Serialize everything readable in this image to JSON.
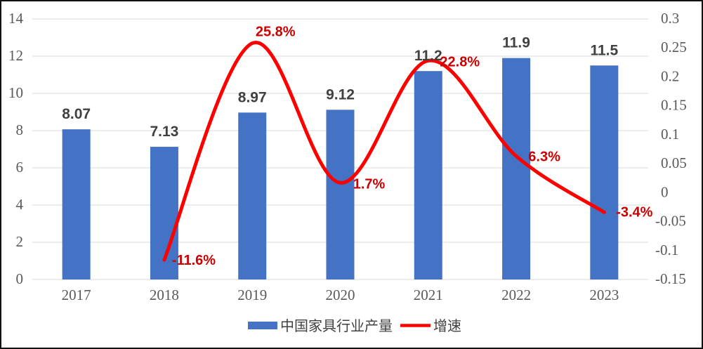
{
  "chart_data": {
    "type": "combo",
    "subtype": "bar+smooth-line",
    "title": "",
    "categories": [
      "2017",
      "2018",
      "2019",
      "2020",
      "2021",
      "2022",
      "2023"
    ],
    "series": [
      {
        "name": "中国家具行业产量",
        "type": "bar",
        "axis": "left",
        "color": "#4472C4",
        "values": [
          8.07,
          7.13,
          8.97,
          9.12,
          11.2,
          11.9,
          11.5
        ],
        "labels": [
          "8.07",
          "7.13",
          "8.97",
          "9.12",
          "11.2",
          "11.9",
          "11.5"
        ]
      },
      {
        "name": "增速",
        "type": "line",
        "smooth": true,
        "axis": "right",
        "color": "#FF0000",
        "label_color": "#CC0000",
        "values": [
          null,
          -0.116,
          0.258,
          0.017,
          0.228,
          0.063,
          -0.034
        ],
        "labels": [
          "",
          "-11.6%",
          "25.8%",
          "1.7%",
          "22.8%",
          "6.3%",
          "-3.4%"
        ]
      }
    ],
    "left_axis": {
      "min": 0,
      "max": 14,
      "step": 2,
      "tick_values": [
        0,
        2,
        4,
        6,
        8,
        10,
        12,
        14
      ],
      "tick_labels": [
        "0",
        "2",
        "4",
        "6",
        "8",
        "10",
        "12",
        "14"
      ]
    },
    "right_axis": {
      "min": -0.15,
      "max": 0.3,
      "step": 0.05,
      "tick_values": [
        -0.15,
        -0.1,
        -0.05,
        0,
        0.05,
        0.1,
        0.15,
        0.2,
        0.25,
        0.3
      ],
      "tick_labels": [
        "-0.15",
        "-0.1",
        "-0.05",
        "0",
        "0.05",
        "0.1",
        "0.15",
        "0.2",
        "0.25",
        "0.3"
      ]
    },
    "grid": true,
    "legend_position": "bottom",
    "colors": {
      "gridline": "#D9D9D9",
      "axis_text": "#595959",
      "bar_label_text": "#404040",
      "line_label_text": "#CC0000",
      "bar_fill": "#4472C4",
      "line_stroke": "#FF0000",
      "border": "#111111",
      "background": "#FFFFFF"
    }
  }
}
